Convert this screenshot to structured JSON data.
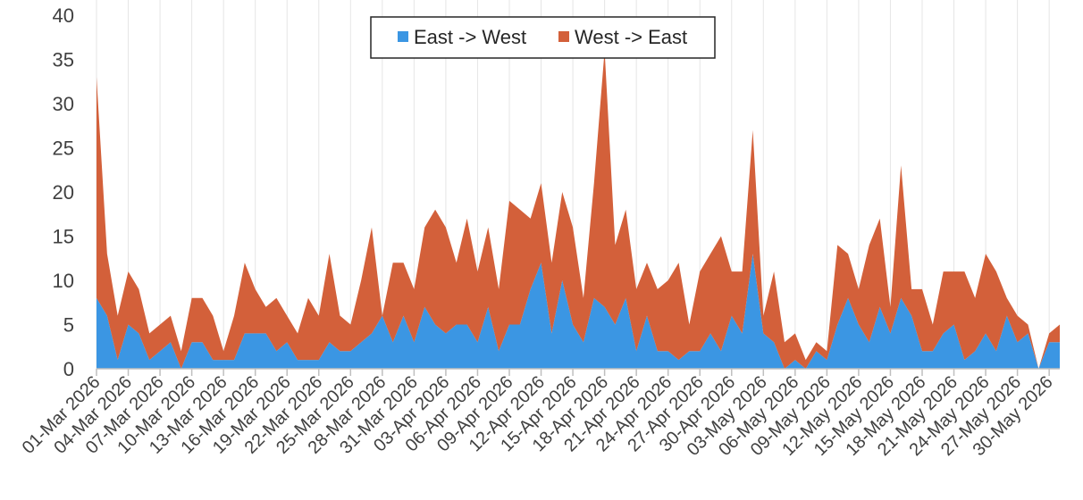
{
  "chart_data": {
    "type": "area",
    "stacked": true,
    "title": "",
    "xlabel": "",
    "ylabel": "",
    "ylim": [
      0,
      40
    ],
    "y_ticks": [
      0,
      5,
      10,
      15,
      20,
      25,
      30,
      35,
      40
    ],
    "grid": "vertical",
    "legend_position": "top-center",
    "x_start": "01-Mar-2026",
    "x_tick_labels": [
      "01-Mar 2026",
      "04-Mar 2026",
      "07-Mar 2026",
      "10-Mar 2026",
      "13-Mar 2026",
      "16-Mar 2026",
      "19-Mar 2026",
      "22-Mar 2026",
      "25-Mar 2026",
      "28-Mar 2026",
      "31-Mar 2026",
      "03-Apr 2026",
      "06-Apr 2026",
      "09-Apr 2026",
      "12-Apr 2026",
      "15-Apr 2026",
      "18-Apr 2026",
      "21-Apr 2026",
      "24-Apr 2026",
      "27-Apr 2026",
      "30-Apr 2026",
      "03-May 2026",
      "06-May 2026",
      "09-May 2026",
      "12-May 2026",
      "15-May 2026",
      "18-May 2026",
      "21-May 2026",
      "24-May 2026",
      "27-May 2026",
      "30-May 2026"
    ],
    "series": [
      {
        "name": "East -> West",
        "color": "#3b96e3",
        "values": [
          8,
          6,
          1,
          5,
          4,
          1,
          2,
          3,
          0,
          3,
          3,
          1,
          1,
          1,
          4,
          4,
          4,
          2,
          3,
          1,
          1,
          1,
          3,
          2,
          2,
          3,
          4,
          6,
          3,
          6,
          3,
          7,
          5,
          4,
          5,
          5,
          3,
          7,
          2,
          5,
          5,
          9,
          12,
          4,
          10,
          5,
          3,
          8,
          7,
          5,
          8,
          2,
          6,
          2,
          2,
          1,
          2,
          2,
          4,
          2,
          6,
          4,
          13,
          4,
          3,
          0,
          1,
          0,
          2,
          1,
          5,
          8,
          5,
          3,
          7,
          4,
          8,
          6,
          2,
          2,
          4,
          5,
          1,
          2,
          4,
          2,
          6,
          3,
          4,
          0,
          3,
          3
        ]
      },
      {
        "name": "West -> East",
        "color": "#d3603a",
        "values": [
          25,
          7,
          5,
          6,
          5,
          3,
          3,
          3,
          2,
          5,
          5,
          5,
          1,
          5,
          8,
          5,
          3,
          6,
          3,
          3,
          7,
          5,
          10,
          4,
          3,
          7,
          12,
          0,
          9,
          6,
          6,
          9,
          13,
          12,
          7,
          12,
          8,
          9,
          7,
          14,
          13,
          8,
          9,
          8,
          10,
          11,
          5,
          13,
          29,
          9,
          10,
          7,
          6,
          7,
          8,
          11,
          3,
          9,
          9,
          13,
          5,
          7,
          14,
          2,
          8,
          3,
          3,
          1,
          1,
          1,
          9,
          5,
          4,
          11,
          10,
          3,
          15,
          3,
          7,
          3,
          7,
          6,
          10,
          6,
          9,
          9,
          2,
          3,
          1,
          0,
          1,
          2
        ]
      }
    ]
  }
}
